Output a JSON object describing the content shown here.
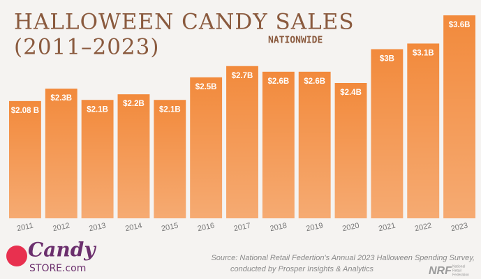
{
  "chart_data": {
    "type": "bar",
    "title": "HALLOWEEN CANDY SALES",
    "subtitle": "(2011–2023)",
    "annotation": "NATIONWIDE",
    "categories": [
      "2011",
      "2012",
      "2013",
      "2014",
      "2015",
      "2016",
      "2017",
      "2018",
      "2019",
      "2020",
      "2021",
      "2022",
      "2023"
    ],
    "values": [
      2.08,
      2.3,
      2.1,
      2.2,
      2.1,
      2.5,
      2.7,
      2.6,
      2.6,
      2.4,
      3,
      3.1,
      3.6
    ],
    "value_labels": [
      "$2.08 B",
      "$2.3B",
      "$2.1B",
      "$2.2B",
      "$2.1B",
      "$2.5B",
      "$2.7B",
      "$2.6B",
      "$2.6B",
      "$2.4B",
      "$3B",
      "$3.1B",
      "$3.6B"
    ],
    "color": "#f28a3c",
    "source": [
      "Source: National Retail Federtion's Annual 2023 Halloween Spending Survey,",
      "conducted by Prosper Insights & Analytics"
    ]
  },
  "logos": {
    "candy": "Candy",
    "store": "STORE.com",
    "nrf": "NRF",
    "nrf_name": [
      "National",
      "Retail",
      "Federation"
    ]
  }
}
